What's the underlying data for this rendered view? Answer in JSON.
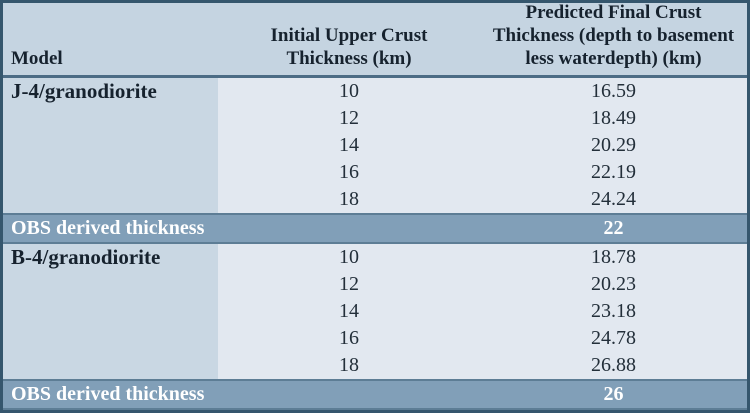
{
  "table": {
    "columns": [
      {
        "label": "Model"
      },
      {
        "label": "Initial Upper Crust\nThickness (km)"
      },
      {
        "label": "Predicted Final Crust\nThickness (depth to basement\nless waterdepth) (km)"
      }
    ],
    "sections": [
      {
        "model": "J-4/granodiorite",
        "rows": [
          {
            "initial": "10",
            "predicted": "16.59"
          },
          {
            "initial": "12",
            "predicted": "18.49"
          },
          {
            "initial": "14",
            "predicted": "20.29"
          },
          {
            "initial": "16",
            "predicted": "22.19"
          },
          {
            "initial": "18",
            "predicted": "24.24"
          }
        ],
        "obs_label": "OBS derived thickness",
        "obs_value": "22"
      },
      {
        "model": "B-4/granodiorite",
        "rows": [
          {
            "initial": "10",
            "predicted": "18.78"
          },
          {
            "initial": "12",
            "predicted": "20.23"
          },
          {
            "initial": "14",
            "predicted": "23.18"
          },
          {
            "initial": "16",
            "predicted": "24.78"
          },
          {
            "initial": "18",
            "predicted": "26.88"
          }
        ],
        "obs_label": "OBS derived thickness",
        "obs_value": "26"
      }
    ],
    "colors": {
      "outer_border": "#35566d",
      "header_bg": "#c5d4e1",
      "header_border": "#4c6c85",
      "model_column_bg": "#c9d7e3",
      "data_bg": "#e2e8f0",
      "obs_band_bg": "#819fb8",
      "obs_band_border": "#5d7d95",
      "text": "#16222e",
      "obs_text": "#ffffff"
    }
  },
  "chart_data": {
    "type": "table",
    "columns": [
      "Model",
      "Initial Upper Crust Thickness (km)",
      "Predicted Final Crust Thickness (depth to basement less waterdepth) (km)"
    ],
    "rows": [
      [
        "J-4/granodiorite",
        10,
        16.59
      ],
      [
        "",
        12,
        18.49
      ],
      [
        "",
        14,
        20.29
      ],
      [
        "",
        16,
        22.19
      ],
      [
        "",
        18,
        24.24
      ],
      [
        "OBS derived thickness",
        null,
        22
      ],
      [
        "B-4/granodiorite",
        10,
        18.78
      ],
      [
        "",
        12,
        20.23
      ],
      [
        "",
        14,
        23.18
      ],
      [
        "",
        16,
        24.78
      ],
      [
        "",
        18,
        26.88
      ],
      [
        "OBS derived thickness",
        null,
        26
      ]
    ]
  }
}
